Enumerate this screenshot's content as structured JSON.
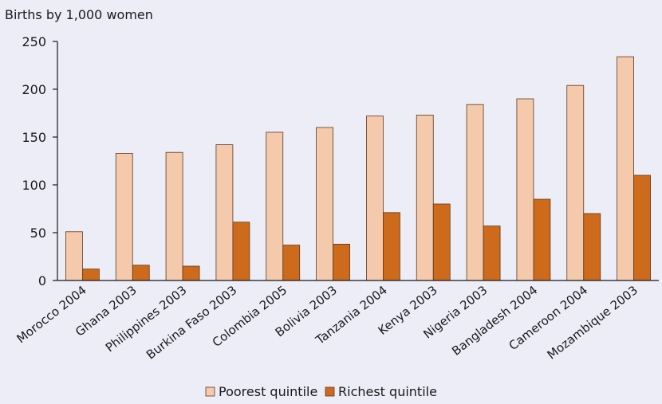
{
  "chart_data": {
    "type": "bar",
    "title": "",
    "ylabel": "Births by 1,000 women",
    "xlabel": "",
    "ylim": [
      0,
      250
    ],
    "yticks": [
      0,
      50,
      100,
      150,
      200,
      250
    ],
    "grid": false,
    "legend_position": "bottom-center",
    "categories": [
      "Morocco 2004",
      "Ghana 2003",
      "Philippines 2003",
      "Burkina Faso 2003",
      "Colombia 2005",
      "Bolivia 2003",
      "Tanzania 2004",
      "Kenya 2003",
      "Nigeria 2003",
      "Bangladesh 2004",
      "Cameroon 2004",
      "Mozambique 2003"
    ],
    "series": [
      {
        "name": "Poorest quintile",
        "color": "#f5c9ab",
        "values": [
          51,
          133,
          134,
          142,
          155,
          160,
          172,
          173,
          184,
          190,
          204,
          234
        ]
      },
      {
        "name": "Richest quintile",
        "color": "#cd6a1c",
        "values": [
          12,
          16,
          15,
          61,
          37,
          38,
          71,
          80,
          57,
          85,
          70,
          110
        ]
      }
    ]
  }
}
